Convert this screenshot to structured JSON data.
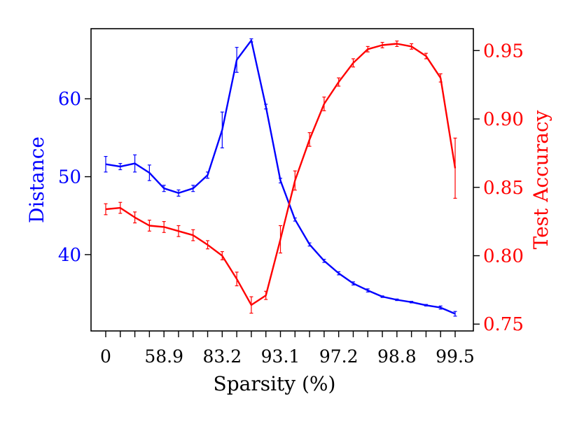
{
  "chart_data": {
    "type": "line",
    "xlabel": "Sparsity (%)",
    "x_tick_labels": [
      "0",
      "58.9",
      "83.2",
      "93.1",
      "97.2",
      "98.8",
      "99.5"
    ],
    "y_left": {
      "label": "Distance",
      "color": "#0000ff",
      "ticks": [
        "40",
        "50",
        "60"
      ],
      "ylim": [
        30.2,
        69.0
      ]
    },
    "y_right": {
      "label": "Test Accuracy",
      "color": "#ff0000",
      "ticks": [
        "0.75",
        "0.80",
        "0.85",
        "0.90",
        "0.95"
      ],
      "ylim": [
        0.745,
        0.966
      ]
    },
    "series": [
      {
        "axis": "left",
        "color": "#0000ff",
        "x": [
          0,
          1,
          2,
          3,
          4,
          5,
          6,
          7,
          8,
          9,
          10,
          11,
          12,
          13,
          14,
          15,
          16,
          17,
          18,
          19,
          20,
          21,
          22,
          23,
          24
        ],
        "values": [
          51.6,
          51.3,
          51.7,
          50.5,
          48.5,
          47.9,
          48.5,
          50.2,
          56.0,
          65.0,
          67.5,
          59.0,
          49.5,
          44.5,
          41.3,
          39.2,
          37.6,
          36.3,
          35.4,
          34.6,
          34.2,
          33.9,
          33.5,
          33.2,
          32.4
        ],
        "err": [
          1.0,
          0.4,
          1.1,
          1.0,
          0.4,
          0.4,
          0.4,
          0.4,
          2.3,
          1.6,
          0.2,
          0.3,
          0.3,
          0.2,
          0.2,
          0.2,
          0.2,
          0.2,
          0.2,
          0.1,
          0.1,
          0.1,
          0.1,
          0.2,
          0.3
        ]
      },
      {
        "axis": "right",
        "color": "#ff0000",
        "x": [
          0,
          1,
          2,
          3,
          4,
          5,
          6,
          7,
          8,
          9,
          10,
          11,
          12,
          13,
          14,
          15,
          16,
          17,
          18,
          19,
          20,
          21,
          22,
          23,
          24
        ],
        "values": [
          0.834,
          0.835,
          0.828,
          0.822,
          0.821,
          0.818,
          0.815,
          0.808,
          0.8,
          0.783,
          0.764,
          0.771,
          0.812,
          0.855,
          0.885,
          0.911,
          0.927,
          0.941,
          0.951,
          0.954,
          0.955,
          0.953,
          0.946,
          0.93,
          0.864
        ],
        "err": [
          0.004,
          0.004,
          0.004,
          0.004,
          0.004,
          0.004,
          0.004,
          0.003,
          0.003,
          0.005,
          0.006,
          0.003,
          0.01,
          0.007,
          0.005,
          0.005,
          0.003,
          0.003,
          0.002,
          0.002,
          0.002,
          0.002,
          0.002,
          0.003,
          0.022
        ]
      }
    ],
    "grid": false
  }
}
